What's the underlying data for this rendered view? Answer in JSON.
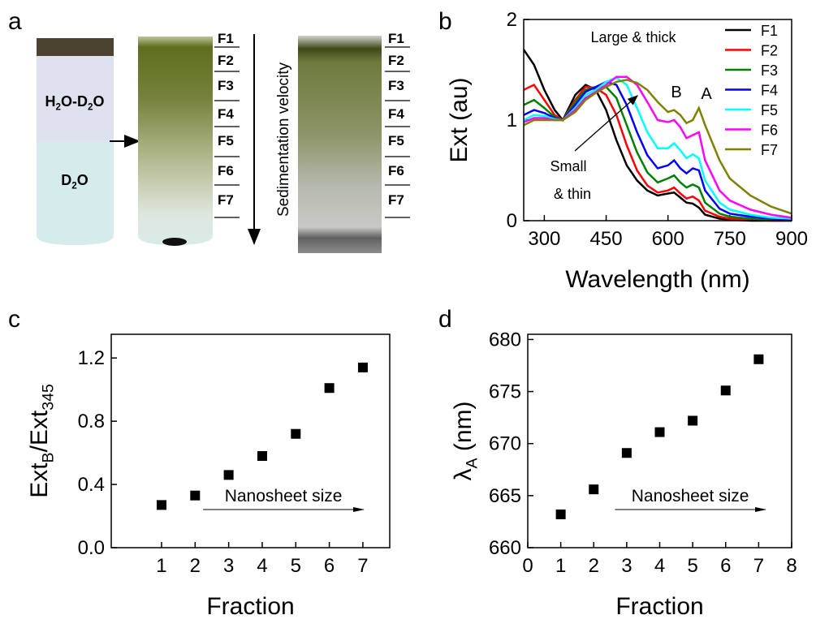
{
  "diagram": {
    "panel_label": "a",
    "upper_layer": [
      "H",
      "2",
      "O-D",
      "2",
      "O"
    ],
    "lower_layer": [
      "D",
      "2",
      "O"
    ],
    "fractions_left": [
      "F1",
      "F2",
      "F3",
      "F4",
      "F5",
      "F6",
      "F7"
    ],
    "arrow_label": "Sedimentation velocity",
    "fractions_right": [
      "F1",
      "F2",
      "F3",
      "F4",
      "F5",
      "F6",
      "F7"
    ]
  },
  "chart_data": [
    {
      "type": "line",
      "panel_label": "b",
      "xlabel": "Wavelength (nm)",
      "ylabel": "Ext (au)",
      "xlim": [
        250,
        900
      ],
      "ylim": [
        0,
        2
      ],
      "xticks": [
        300,
        450,
        600,
        750,
        900
      ],
      "yticks": [
        0,
        1,
        2
      ],
      "legend": "upper right",
      "annotations": [
        "Large & thick",
        "Small",
        "& thin",
        "B",
        "A"
      ],
      "x": [
        250,
        275,
        300,
        325,
        345,
        375,
        400,
        425,
        450,
        475,
        500,
        525,
        550,
        575,
        600,
        615,
        630,
        645,
        660,
        675,
        690,
        725,
        750,
        800,
        850,
        900
      ],
      "series": [
        {
          "name": "F1",
          "color": "#000000",
          "values": [
            1.7,
            1.55,
            1.3,
            1.1,
            1.0,
            1.25,
            1.35,
            1.3,
            1.1,
            0.8,
            0.55,
            0.4,
            0.3,
            0.25,
            0.27,
            0.28,
            0.23,
            0.18,
            0.17,
            0.13,
            0.06,
            0.02,
            0.01,
            0,
            0,
            0
          ]
        },
        {
          "name": "F2",
          "color": "#ff0000",
          "values": [
            1.3,
            1.35,
            1.2,
            1.05,
            1.0,
            1.2,
            1.33,
            1.32,
            1.25,
            1.05,
            0.75,
            0.5,
            0.35,
            0.28,
            0.3,
            0.33,
            0.27,
            0.22,
            0.24,
            0.2,
            0.1,
            0.04,
            0.02,
            0.01,
            0,
            0
          ]
        },
        {
          "name": "F3",
          "color": "#008000",
          "values": [
            1.15,
            1.2,
            1.12,
            1.03,
            1.0,
            1.18,
            1.3,
            1.33,
            1.33,
            1.22,
            0.95,
            0.68,
            0.48,
            0.38,
            0.42,
            0.45,
            0.38,
            0.33,
            0.36,
            0.33,
            0.18,
            0.07,
            0.04,
            0.02,
            0.01,
            0
          ]
        },
        {
          "name": "F4",
          "color": "#0000ff",
          "values": [
            1.05,
            1.1,
            1.07,
            1.02,
            1.0,
            1.15,
            1.28,
            1.33,
            1.38,
            1.35,
            1.15,
            0.88,
            0.65,
            0.52,
            0.55,
            0.6,
            0.52,
            0.47,
            0.52,
            0.5,
            0.3,
            0.12,
            0.07,
            0.04,
            0.02,
            0.01
          ]
        },
        {
          "name": "F5",
          "color": "#00ffff",
          "values": [
            1.0,
            1.05,
            1.04,
            1.01,
            1.0,
            1.12,
            1.25,
            1.3,
            1.38,
            1.42,
            1.35,
            1.12,
            0.88,
            0.72,
            0.72,
            0.77,
            0.7,
            0.62,
            0.66,
            0.62,
            0.4,
            0.18,
            0.11,
            0.06,
            0.03,
            0.02
          ]
        },
        {
          "name": "F6",
          "color": "#ff00ff",
          "values": [
            0.98,
            1.02,
            1.02,
            1.0,
            1.0,
            1.1,
            1.22,
            1.28,
            1.35,
            1.43,
            1.43,
            1.35,
            1.18,
            1.0,
            0.98,
            1.0,
            0.93,
            0.82,
            0.85,
            0.88,
            0.6,
            0.3,
            0.2,
            0.11,
            0.06,
            0.03
          ]
        },
        {
          "name": "F7",
          "color": "#808000",
          "values": [
            0.95,
            1.0,
            1.0,
            1.0,
            1.0,
            1.08,
            1.2,
            1.27,
            1.33,
            1.38,
            1.4,
            1.37,
            1.3,
            1.18,
            1.08,
            1.1,
            1.05,
            0.97,
            1.0,
            1.12,
            0.95,
            0.6,
            0.42,
            0.25,
            0.14,
            0.07
          ]
        }
      ]
    },
    {
      "type": "scatter",
      "panel_label": "c",
      "xlabel": "Fraction",
      "ylabel": [
        "Ext",
        "B",
        "/Ext",
        "345"
      ],
      "xlim": [
        -0.5,
        7.8
      ],
      "ylim": [
        0,
        1.35
      ],
      "xticks": [
        1,
        2,
        3,
        4,
        5,
        6,
        7
      ],
      "yticks": [
        {
          "value": 0,
          "label": "0.0"
        },
        0.4,
        0.8,
        1.2
      ],
      "color": "#000000",
      "annotation": "Nanosheet size",
      "x": [
        1,
        2,
        3,
        4,
        5,
        6,
        7
      ],
      "values": [
        0.27,
        0.33,
        0.46,
        0.58,
        0.72,
        1.01,
        1.14
      ]
    },
    {
      "type": "scatter",
      "panel_label": "d",
      "xlabel": "Fraction",
      "ylabel": [
        "λ",
        "A",
        " (nm)"
      ],
      "xlim": [
        0,
        8
      ],
      "ylim": [
        660,
        680.5
      ],
      "xticks": [
        0,
        1,
        2,
        3,
        4,
        5,
        6,
        7,
        8
      ],
      "yticks": [
        660,
        665,
        670,
        675,
        680
      ],
      "color": "#000000",
      "annotation": "Nanosheet size",
      "x": [
        1,
        2,
        3,
        4,
        5,
        6,
        7
      ],
      "values": [
        663.2,
        665.6,
        669.1,
        671.1,
        672.2,
        675.1,
        678.1
      ]
    }
  ]
}
